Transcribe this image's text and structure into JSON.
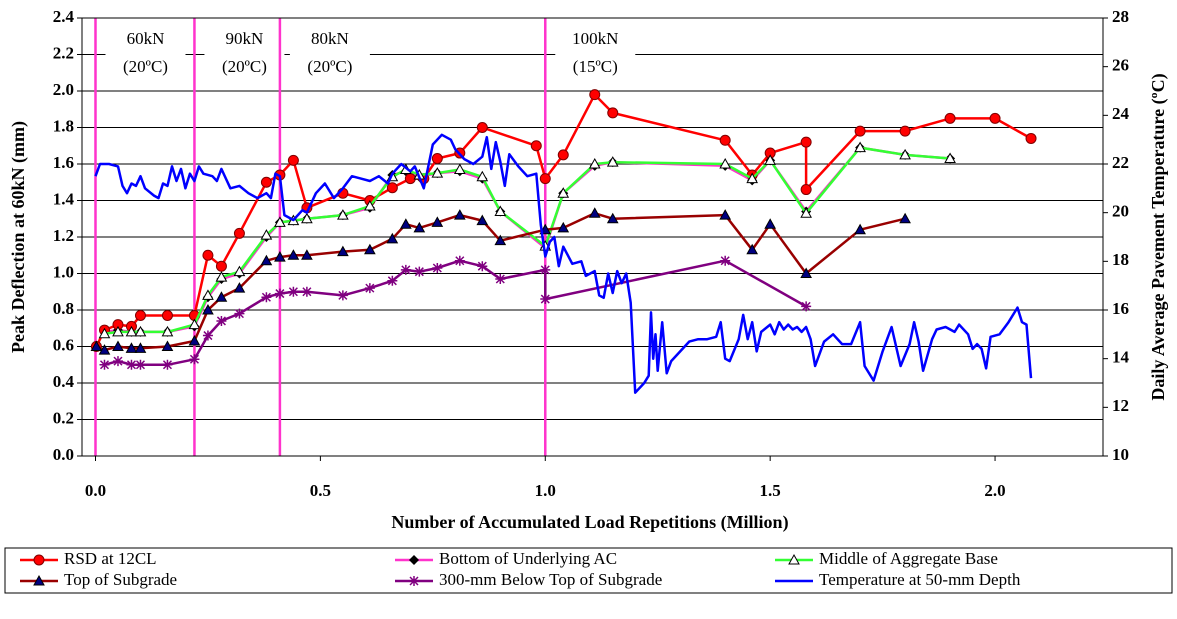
{
  "chart_data": {
    "type": "line",
    "xlabel": "Number of Accumulated Load Repetitions (Million)",
    "ylabel": "Peak Deflection at 60kN (mm)",
    "y2label": "Daily Average Pavement Temperature (ºC)",
    "xlim": [
      -0.03,
      2.24
    ],
    "xticks": [
      {
        "value": 0,
        "label": "0.0"
      },
      0.5,
      {
        "value": 1,
        "label": "1.0"
      },
      1.5,
      {
        "value": 2,
        "label": "2.0"
      }
    ],
    "ylim": [
      0,
      2.4
    ],
    "yticks": [
      {
        "value": 0,
        "label": "0.0"
      },
      0.2,
      0.4,
      0.6,
      0.8,
      {
        "value": 1,
        "label": "1.0"
      },
      1.2,
      1.4,
      1.6,
      1.8,
      {
        "value": 2,
        "label": "2.0"
      },
      2.2,
      2.4
    ],
    "y2lim": [
      10,
      28
    ],
    "y2ticks": [
      10,
      12,
      14,
      16,
      18,
      20,
      22,
      24,
      26,
      28
    ],
    "grid": true,
    "load_blocks": [
      {
        "x": 0,
        "color": "#ff33cc",
        "label": [
          "60kN",
          "(20ºC)"
        ]
      },
      {
        "x": 0.22,
        "color": "#ff33cc",
        "label": [
          "90kN",
          "(20ºC)"
        ]
      },
      {
        "x": 0.41,
        "color": "#ff33cc",
        "label": [
          "80kN",
          "(20ºC)"
        ]
      },
      {
        "x": 1.0,
        "color": "#ff33cc",
        "label": [
          "100kN",
          "(15ºC)"
        ]
      }
    ],
    "series": [
      {
        "name": "Bottom of Underlying AC",
        "color": "#ff33cc",
        "marker": "diamond",
        "marker_color": "#000000",
        "x": [
          0.02,
          0.05,
          0.08,
          0.1,
          0.16,
          0.22,
          0.25,
          0.28,
          0.32,
          0.38,
          0.41,
          0.44,
          0.47,
          0.55,
          0.61,
          0.66,
          0.69,
          0.72,
          0.76,
          0.81,
          0.86,
          0.9,
          1.0,
          1.04,
          1.11,
          1.15,
          1.4,
          1.46,
          1.5,
          1.58,
          1.7,
          1.8,
          1.9
        ],
        "values": [
          0.68,
          0.69,
          0.68,
          0.68,
          0.68,
          0.71,
          0.87,
          0.97,
          1.0,
          1.2,
          1.28,
          1.29,
          1.3,
          1.32,
          1.36,
          1.54,
          1.56,
          1.53,
          1.55,
          1.56,
          1.52,
          1.34,
          1.14,
          1.44,
          1.59,
          1.61,
          1.59,
          1.51,
          1.62,
          1.34,
          1.69,
          1.65,
          1.63
        ]
      },
      {
        "name": "RSD at 12CL",
        "color": "#ff0000",
        "marker": "circle",
        "marker_color": "#ff0000",
        "x": [
          0.002,
          0.02,
          0.05,
          0.08,
          0.1,
          0.16,
          0.22,
          0.25,
          0.28,
          0.32,
          0.38,
          0.41,
          0.44,
          0.47,
          0.55,
          0.61,
          0.66,
          0.7,
          0.73,
          0.76,
          0.81,
          0.86,
          0.98,
          1.0,
          1.04,
          1.11,
          1.15,
          1.4,
          1.46,
          1.5,
          1.58,
          1.58,
          1.7,
          1.8,
          1.9,
          2.0,
          2.08
        ],
        "values": [
          0.6,
          0.69,
          0.72,
          0.71,
          0.77,
          0.77,
          0.77,
          1.1,
          1.04,
          1.22,
          1.5,
          1.54,
          1.62,
          1.36,
          1.44,
          1.4,
          1.47,
          1.52,
          1.52,
          1.63,
          1.66,
          1.8,
          1.7,
          1.52,
          1.65,
          1.98,
          1.88,
          1.73,
          1.54,
          1.66,
          1.72,
          1.46,
          1.78,
          1.78,
          1.85,
          1.85,
          1.74
        ]
      },
      {
        "name": "Middle of Aggregate Base",
        "color": "#33ff33",
        "marker": "triangle",
        "marker_color": "#ffffff",
        "x": [
          0.02,
          0.05,
          0.08,
          0.1,
          0.16,
          0.22,
          0.25,
          0.28,
          0.32,
          0.38,
          0.41,
          0.44,
          0.47,
          0.55,
          0.61,
          0.66,
          0.69,
          0.72,
          0.76,
          0.81,
          0.86,
          0.9,
          1.0,
          1.04,
          1.11,
          1.15,
          1.4,
          1.46,
          1.5,
          1.58,
          1.7,
          1.8,
          1.9
        ],
        "values": [
          0.67,
          0.68,
          0.68,
          0.68,
          0.68,
          0.72,
          0.88,
          0.98,
          1.01,
          1.21,
          1.28,
          1.29,
          1.3,
          1.32,
          1.37,
          1.53,
          1.57,
          1.54,
          1.55,
          1.57,
          1.53,
          1.34,
          1.15,
          1.44,
          1.6,
          1.61,
          1.6,
          1.52,
          1.62,
          1.33,
          1.69,
          1.65,
          1.63
        ]
      },
      {
        "name": "Top of Subgrade",
        "color": "#990000",
        "marker": "triangle",
        "marker_color": "#000080",
        "x": [
          0.002,
          0.02,
          0.05,
          0.08,
          0.1,
          0.16,
          0.22,
          0.25,
          0.28,
          0.32,
          0.38,
          0.41,
          0.44,
          0.47,
          0.55,
          0.61,
          0.66,
          0.69,
          0.72,
          0.76,
          0.81,
          0.86,
          0.9,
          1.0,
          1.04,
          1.11,
          1.15,
          1.4,
          1.46,
          1.5,
          1.58,
          1.7,
          1.8
        ],
        "values": [
          0.6,
          0.58,
          0.6,
          0.59,
          0.59,
          0.6,
          0.63,
          0.8,
          0.87,
          0.92,
          1.07,
          1.09,
          1.1,
          1.1,
          1.12,
          1.13,
          1.19,
          1.27,
          1.25,
          1.28,
          1.32,
          1.29,
          1.18,
          1.24,
          1.25,
          1.33,
          1.3,
          1.32,
          1.13,
          1.27,
          1.0,
          1.24,
          1.3
        ]
      },
      {
        "name": "300-mm Below Top of Subgrade",
        "color": "#800080",
        "marker": "asterisk",
        "marker_color": "#800080",
        "x": [
          0.02,
          0.05,
          0.08,
          0.1,
          0.16,
          0.22,
          0.25,
          0.28,
          0.32,
          0.38,
          0.41,
          0.44,
          0.47,
          0.55,
          0.61,
          0.66,
          0.69,
          0.72,
          0.76,
          0.81,
          0.86,
          0.9,
          1.0,
          1.0,
          1.4,
          1.58
        ],
        "values": [
          0.5,
          0.52,
          0.5,
          0.5,
          0.5,
          0.53,
          0.66,
          0.74,
          0.78,
          0.87,
          0.89,
          0.9,
          0.9,
          0.88,
          0.92,
          0.96,
          1.02,
          1.01,
          1.03,
          1.07,
          1.04,
          0.97,
          1.02,
          0.86,
          1.07,
          0.82
        ]
      },
      {
        "name": "Temperature at 50-mm Depth",
        "color": "#0000ff",
        "marker": "none",
        "marker_color": "#0000ff",
        "axis": "y2",
        "x": [
          0.0,
          0.01,
          0.03,
          0.05,
          0.06,
          0.07,
          0.08,
          0.09,
          0.1,
          0.11,
          0.13,
          0.14,
          0.15,
          0.16,
          0.17,
          0.18,
          0.19,
          0.2,
          0.21,
          0.22,
          0.23,
          0.24,
          0.26,
          0.27,
          0.28,
          0.29,
          0.3,
          0.32,
          0.34,
          0.36,
          0.38,
          0.39,
          0.4,
          0.41,
          0.42,
          0.44,
          0.46,
          0.47,
          0.49,
          0.51,
          0.53,
          0.55,
          0.57,
          0.59,
          0.61,
          0.63,
          0.65,
          0.66,
          0.68,
          0.7,
          0.71,
          0.73,
          0.75,
          0.77,
          0.79,
          0.8,
          0.82,
          0.84,
          0.86,
          0.87,
          0.88,
          0.89,
          0.9,
          0.91,
          0.92,
          0.94,
          0.96,
          0.98,
          0.99,
          1.0,
          1.01,
          1.02,
          1.03,
          1.04,
          1.06,
          1.08,
          1.09,
          1.11,
          1.12,
          1.13,
          1.14,
          1.15,
          1.16,
          1.17,
          1.18,
          1.19,
          1.2,
          1.22,
          1.23,
          1.235,
          1.24,
          1.245,
          1.25,
          1.26,
          1.27,
          1.28,
          1.3,
          1.32,
          1.34,
          1.36,
          1.38,
          1.39,
          1.4,
          1.41,
          1.43,
          1.44,
          1.45,
          1.46,
          1.47,
          1.48,
          1.5,
          1.51,
          1.52,
          1.53,
          1.54,
          1.55,
          1.56,
          1.57,
          1.58,
          1.59,
          1.6,
          1.62,
          1.64,
          1.66,
          1.68,
          1.7,
          1.71,
          1.73,
          1.75,
          1.77,
          1.79,
          1.81,
          1.82,
          1.83,
          1.84,
          1.86,
          1.87,
          1.89,
          1.91,
          1.92,
          1.94,
          1.95,
          1.96,
          1.97,
          1.98,
          1.99,
          2.01,
          2.03,
          2.05,
          2.06,
          2.07,
          2.08
        ],
        "values": [
          21.5,
          22.0,
          22.0,
          21.9,
          21.1,
          20.8,
          21.2,
          21.1,
          21.5,
          21.0,
          20.7,
          20.6,
          21.2,
          21.1,
          21.9,
          21.3,
          21.8,
          21.0,
          21.6,
          21.3,
          21.9,
          21.6,
          21.5,
          21.3,
          21.8,
          21.4,
          21.0,
          21.1,
          20.8,
          20.6,
          20.8,
          20.6,
          21.6,
          21.5,
          19.9,
          19.7,
          20.1,
          20.0,
          20.8,
          21.2,
          20.6,
          21.0,
          21.5,
          21.4,
          21.3,
          21.5,
          21.2,
          21.6,
          22.0,
          21.7,
          21.9,
          21.0,
          22.8,
          23.2,
          23.0,
          22.6,
          22.2,
          22.0,
          22.3,
          23.1,
          21.8,
          22.9,
          22.1,
          21.1,
          22.4,
          21.9,
          21.5,
          21.6,
          19.5,
          18.2,
          18.8,
          19.0,
          17.8,
          18.6,
          17.9,
          18.0,
          17.4,
          17.6,
          16.6,
          16.5,
          17.5,
          16.7,
          17.6,
          17.1,
          17.5,
          16.3,
          12.6,
          13.0,
          13.3,
          15.9,
          14.0,
          15.0,
          13.5,
          15.5,
          13.4,
          13.9,
          14.3,
          14.7,
          14.8,
          14.8,
          14.9,
          15.5,
          14.0,
          13.9,
          14.8,
          15.8,
          14.8,
          15.5,
          14.3,
          15.1,
          15.4,
          15.0,
          15.5,
          15.2,
          15.4,
          15.2,
          15.3,
          15.1,
          15.3,
          14.8,
          13.7,
          14.7,
          15.0,
          14.6,
          14.6,
          15.5,
          13.7,
          13.1,
          14.3,
          15.3,
          13.7,
          14.6,
          15.5,
          14.7,
          13.5,
          14.8,
          15.2,
          15.3,
          15.1,
          15.4,
          15.0,
          14.4,
          14.6,
          14.4,
          13.6,
          14.9,
          15.0,
          15.5,
          16.1,
          15.5,
          15.4,
          13.2
        ]
      }
    ],
    "legend_order": [
      1,
      0,
      2,
      3,
      4,
      5
    ]
  }
}
